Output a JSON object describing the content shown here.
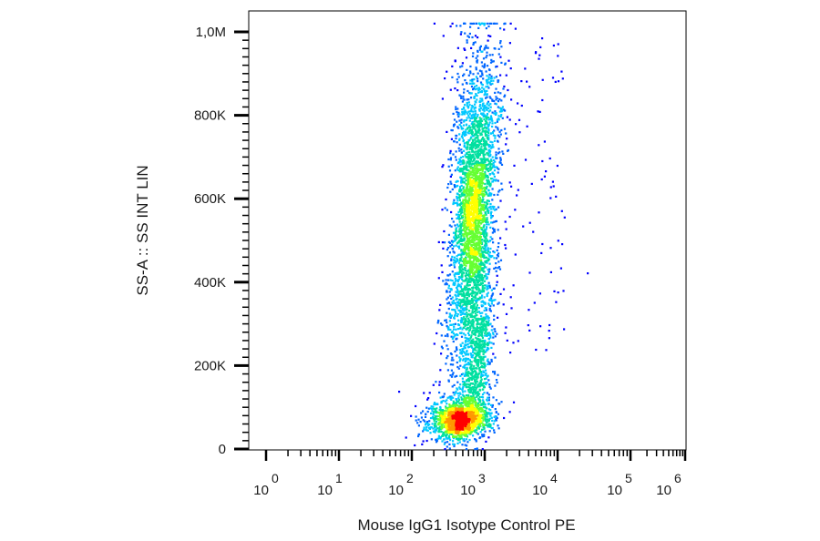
{
  "chart_data": {
    "type": "scatter",
    "title": "",
    "xlabel": "Mouse IgG1 Isotype Control PE",
    "ylabel": "SS-A :: SS INT LIN",
    "x_scale": "log",
    "y_scale": "linear",
    "xlim": [
      1,
      1000000
    ],
    "ylim": [
      0,
      1000000
    ],
    "x_tick_labels": [
      {
        "base": "10",
        "exp": "0"
      },
      {
        "base": "10",
        "exp": "1"
      },
      {
        "base": "10",
        "exp": "2"
      },
      {
        "base": "10",
        "exp": "3"
      },
      {
        "base": "10",
        "exp": "4"
      },
      {
        "base": "10",
        "exp": "5"
      },
      {
        "base": "10",
        "exp": "6"
      }
    ],
    "y_tick_labels": [
      "0",
      "200K",
      "400K",
      "600K",
      "800K",
      "1,0M"
    ],
    "y_tick_values": [
      0,
      200000,
      400000,
      600000,
      800000,
      1000000
    ],
    "density_colors": [
      "#0000ff",
      "#0066ff",
      "#00c8ff",
      "#00e0a0",
      "#66ff33",
      "#ffff00",
      "#ff9900",
      "#ff0000"
    ],
    "populations": [
      {
        "center_x": 700,
        "center_y": 70000,
        "density": "highest"
      },
      {
        "center_x": 1100,
        "center_y": 550000,
        "density": "high"
      }
    ],
    "grid": false
  }
}
